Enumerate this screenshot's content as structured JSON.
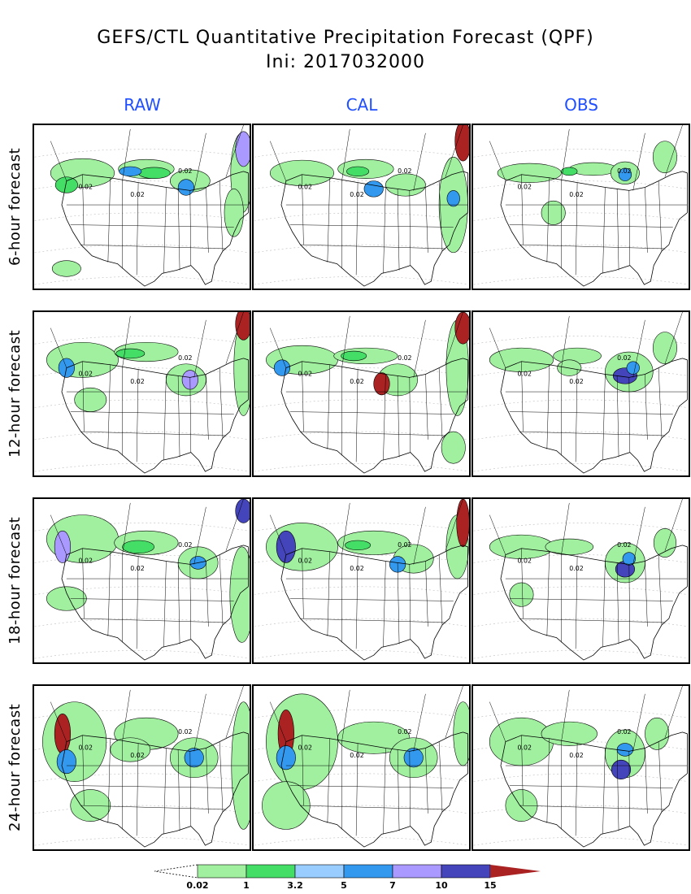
{
  "title": "GEFS/CTL Quantitative Precipitation Forecast (QPF)",
  "subtitle": "Ini: 2017032000",
  "columns": [
    "RAW",
    "CAL",
    "OBS"
  ],
  "rows": [
    "6-hour forecast",
    "12-hour forecast",
    "18-hour forecast",
    "24-hour forecast"
  ],
  "contour_label": "0.02",
  "colorbar": {
    "ticks": [
      "0.02",
      "1",
      "3.2",
      "5",
      "7",
      "10",
      "15"
    ],
    "colors": [
      "#a0f0a0",
      "#44dd66",
      "#99ccff",
      "#3399ee",
      "#aa99ff",
      "#4444bb",
      "#aa2222"
    ]
  },
  "colors": {
    "header": "#1f4fff",
    "light_green": "#a0f0a0",
    "green": "#44dd66",
    "light_blue": "#99ccff",
    "blue": "#3399ee",
    "purple": "#aa99ff",
    "dark_blue": "#4444bb",
    "dark_red": "#aa2222"
  }
}
